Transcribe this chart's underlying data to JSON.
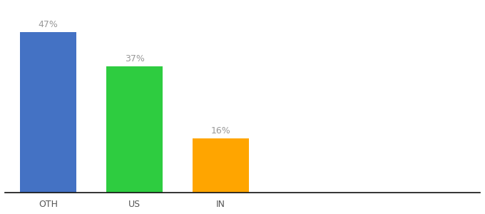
{
  "categories": [
    "OTH",
    "US",
    "IN"
  ],
  "values": [
    47,
    37,
    16
  ],
  "bar_colors": [
    "#4472C4",
    "#2ECC40",
    "#FFA500"
  ],
  "labels": [
    "47%",
    "37%",
    "16%"
  ],
  "ylim": [
    0,
    55
  ],
  "background_color": "#ffffff",
  "label_color": "#999999",
  "label_fontsize": 9,
  "tick_fontsize": 9,
  "bar_width": 0.65
}
